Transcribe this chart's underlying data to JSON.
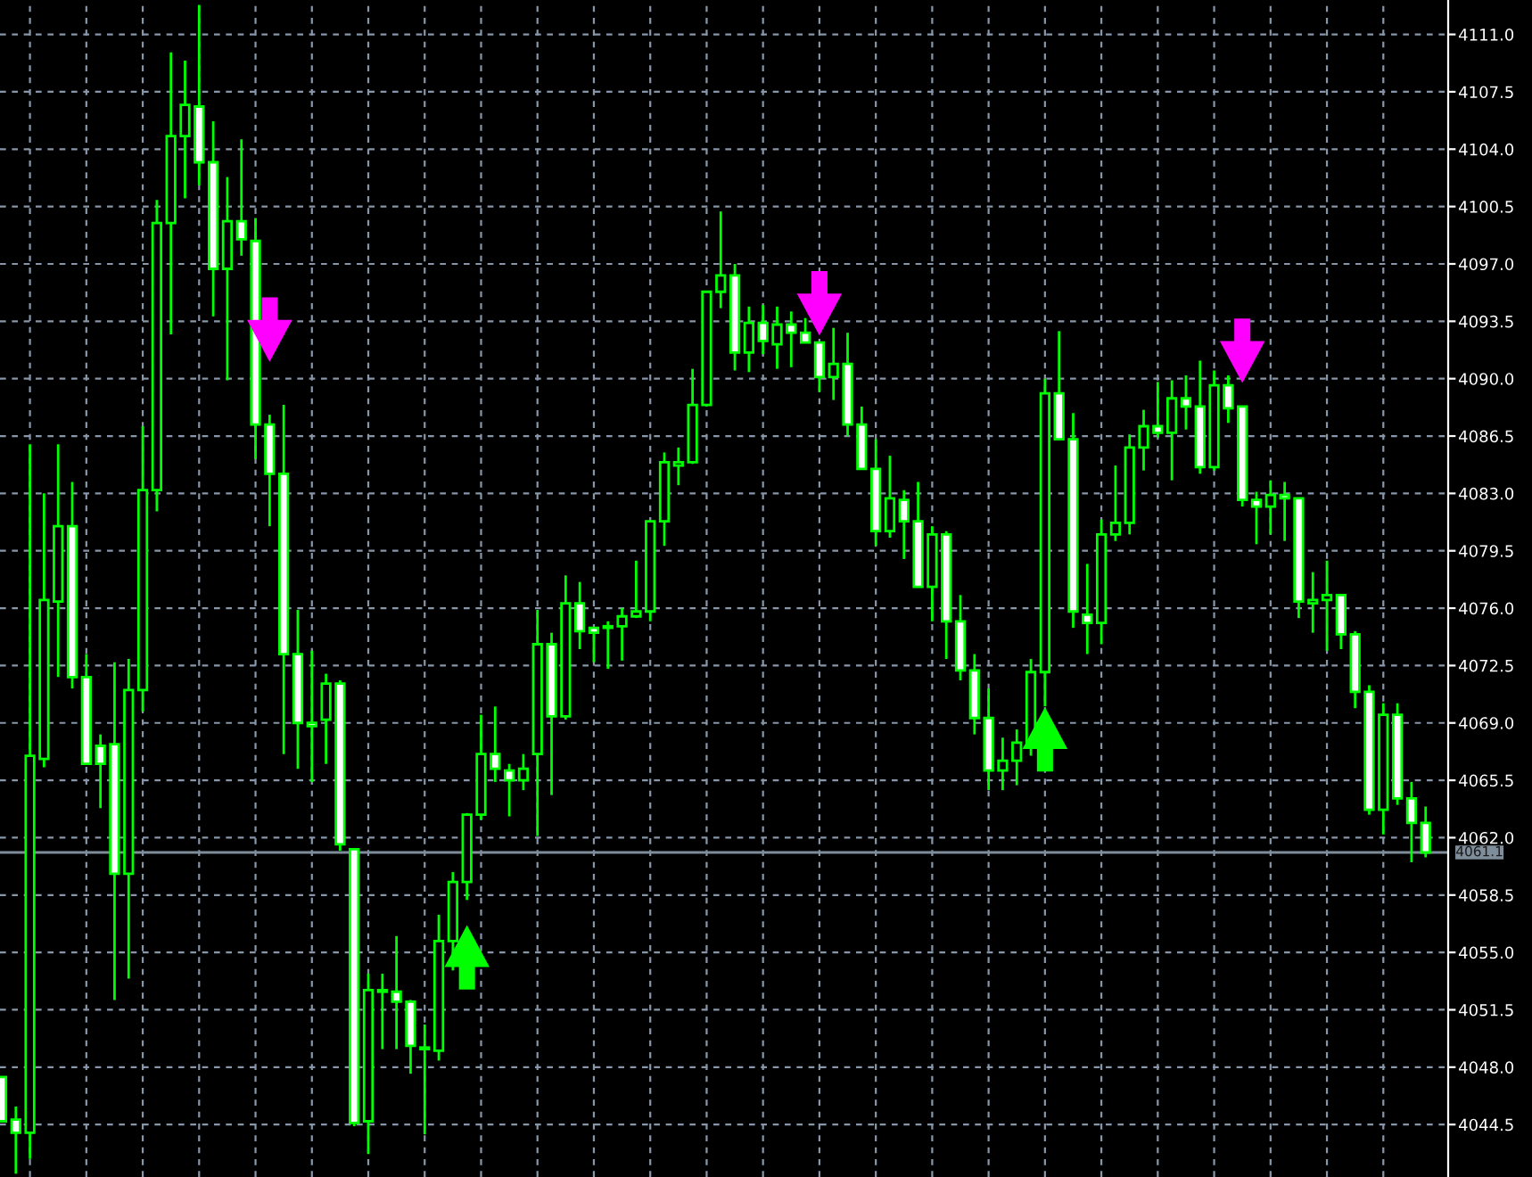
{
  "chart_data": {
    "type": "candlestick",
    "categories": [
      null,
      null,
      null,
      null,
      null,
      null,
      null,
      null,
      null,
      null,
      null,
      null,
      null,
      null,
      null,
      null,
      null,
      null,
      null,
      null,
      null,
      null,
      null,
      null,
      null,
      null,
      null,
      null,
      null,
      null,
      null,
      null,
      null,
      null,
      null,
      null,
      null,
      null,
      null,
      null,
      null,
      null,
      null,
      null,
      null,
      null,
      null,
      null,
      null,
      null,
      null,
      null,
      null,
      null,
      null,
      null,
      null,
      null,
      null,
      null,
      null,
      null,
      null,
      null,
      null,
      null,
      null,
      null,
      null,
      null,
      null,
      null,
      null,
      null,
      null,
      null,
      null,
      null,
      null,
      null,
      null,
      null,
      null,
      null,
      null,
      null,
      null,
      null,
      null,
      null,
      null,
      null,
      null,
      null,
      null,
      null,
      null,
      null,
      null,
      null,
      null,
      null
    ],
    "ohlc": [
      [
        4047.4,
        4047.4,
        4044.7,
        4044.7
      ],
      [
        4044.8,
        4045.6,
        4041.5,
        4044.0
      ],
      [
        4044.0,
        4086.0,
        4042.4,
        4067.0
      ],
      [
        4066.8,
        4083.0,
        4066.3,
        4076.5
      ],
      [
        4076.4,
        4086.0,
        4071.8,
        4081.0
      ],
      [
        4081.0,
        4083.7,
        4071.1,
        4071.8
      ],
      [
        4071.8,
        4073.2,
        4066.5,
        4066.5
      ],
      [
        4067.6,
        4068.3,
        4063.8,
        4066.5
      ],
      [
        4067.7,
        4072.7,
        4052.1,
        4059.8
      ],
      [
        4059.8,
        4072.9,
        4053.4,
        4071.0
      ],
      [
        4071.0,
        4087.1,
        4069.7,
        4083.2
      ],
      [
        4083.2,
        4100.9,
        4081.9,
        4099.5
      ],
      [
        4099.5,
        4109.9,
        4092.7,
        4104.8
      ],
      [
        4104.8,
        4109.4,
        4101.0,
        4106.7
      ],
      [
        4106.6,
        4112.8,
        4101.8,
        4103.2
      ],
      [
        4103.2,
        4105.7,
        4093.8,
        4096.7
      ],
      [
        4096.7,
        4102.3,
        4089.9,
        4099.6
      ],
      [
        4099.6,
        4104.6,
        4097.5,
        4098.5
      ],
      [
        4098.4,
        4099.8,
        4085.1,
        4087.2
      ],
      [
        4087.2,
        4087.8,
        4081.0,
        4084.2
      ],
      [
        4084.2,
        4088.4,
        4067.1,
        4073.2
      ],
      [
        4073.2,
        4075.9,
        4066.2,
        4069.0
      ],
      [
        4069.0,
        4073.4,
        4065.4,
        4068.8
      ],
      [
        4069.2,
        4072.0,
        4066.5,
        4071.4
      ],
      [
        4071.4,
        4071.6,
        4061.2,
        4061.6
      ],
      [
        4061.3,
        4061.3,
        4044.4,
        4044.6
      ],
      [
        4044.7,
        4053.7,
        4042.7,
        4052.7
      ],
      [
        4052.7,
        4053.7,
        4049.1,
        4052.6
      ],
      [
        4052.6,
        4056.0,
        4049.1,
        4052.0
      ],
      [
        4052.0,
        4052.1,
        4047.6,
        4049.3
      ],
      [
        4049.2,
        4050.6,
        4043.9,
        4049.1
      ],
      [
        4049.0,
        4057.3,
        4048.4,
        4055.7
      ],
      [
        4055.7,
        4059.9,
        4053.9,
        4059.3
      ],
      [
        4059.3,
        4063.5,
        4058.2,
        4063.4
      ],
      [
        4063.4,
        4069.5,
        4063.1,
        4067.1
      ],
      [
        4067.1,
        4070.0,
        4065.4,
        4066.2
      ],
      [
        4066.1,
        4066.5,
        4063.3,
        4065.5
      ],
      [
        4065.5,
        4067.1,
        4064.9,
        4066.2
      ],
      [
        4067.1,
        4075.9,
        4062.1,
        4073.8
      ],
      [
        4073.8,
        4074.5,
        4064.6,
        4069.4
      ],
      [
        4069.4,
        4078.0,
        4069.2,
        4076.3
      ],
      [
        4076.3,
        4077.6,
        4073.5,
        4074.6
      ],
      [
        4074.8,
        4074.8,
        4072.7,
        4074.5
      ],
      [
        4074.8,
        4075.2,
        4072.3,
        4074.9
      ],
      [
        4074.9,
        4076.0,
        4072.8,
        4075.5
      ],
      [
        4075.5,
        4078.9,
        4075.4,
        4075.8
      ],
      [
        4075.8,
        4081.3,
        4075.2,
        4081.3
      ],
      [
        4081.3,
        4085.5,
        4079.8,
        4084.9
      ],
      [
        4084.7,
        4085.8,
        4083.5,
        4084.9
      ],
      [
        4084.9,
        4090.6,
        4084.8,
        4088.4
      ],
      [
        4088.4,
        4095.3,
        4088.3,
        4095.3
      ],
      [
        4095.3,
        4100.2,
        4094.3,
        4096.3
      ],
      [
        4096.3,
        4097.0,
        4090.5,
        4091.6
      ],
      [
        4091.6,
        4094.4,
        4090.4,
        4093.4
      ],
      [
        4093.4,
        4094.5,
        4091.5,
        4092.3
      ],
      [
        4092.1,
        4094.4,
        4090.6,
        4093.3
      ],
      [
        4093.3,
        4094.1,
        4090.7,
        4092.8
      ],
      [
        4092.8,
        4093.7,
        4092.2,
        4092.2
      ],
      [
        4092.2,
        4092.2,
        4089.2,
        4090.1
      ],
      [
        4090.1,
        4093.1,
        4088.7,
        4090.9
      ],
      [
        4090.9,
        4092.8,
        4086.5,
        4087.2
      ],
      [
        4087.2,
        4088.3,
        4084.5,
        4084.5
      ],
      [
        4084.5,
        4086.3,
        4079.8,
        4080.7
      ],
      [
        4080.7,
        4085.3,
        4080.3,
        4082.7
      ],
      [
        4082.6,
        4083.2,
        4079.0,
        4081.3
      ],
      [
        4081.3,
        4083.7,
        4077.3,
        4077.3
      ],
      [
        4077.3,
        4081.0,
        4075.2,
        4080.5
      ],
      [
        4080.5,
        4080.7,
        4072.9,
        4075.2
      ],
      [
        4075.2,
        4076.8,
        4071.6,
        4072.2
      ],
      [
        4072.2,
        4073.2,
        4068.3,
        4069.3
      ],
      [
        4069.3,
        4071.1,
        4064.9,
        4066.1
      ],
      [
        4066.1,
        4068.1,
        4064.9,
        4066.7
      ],
      [
        4066.7,
        4068.6,
        4065.2,
        4067.8
      ],
      [
        4067.8,
        4072.9,
        4067.0,
        4072.1
      ],
      [
        4072.1,
        4090.0,
        4070.0,
        4089.1
      ],
      [
        4089.1,
        4092.9,
        4086.3,
        4086.3
      ],
      [
        4086.3,
        4087.9,
        4074.8,
        4075.8
      ],
      [
        4075.6,
        4078.7,
        4073.2,
        4075.1
      ],
      [
        4075.1,
        4081.4,
        4073.8,
        4080.5
      ],
      [
        4080.5,
        4084.7,
        4080.1,
        4081.2
      ],
      [
        4081.2,
        4086.6,
        4080.5,
        4085.8
      ],
      [
        4085.8,
        4088.1,
        4084.4,
        4087.1
      ],
      [
        4087.1,
        4089.8,
        4086.4,
        4086.7
      ],
      [
        4086.7,
        4089.9,
        4083.8,
        4088.8
      ],
      [
        4088.8,
        4090.2,
        4086.9,
        4088.3
      ],
      [
        4088.3,
        4091.1,
        4084.2,
        4084.6
      ],
      [
        4084.6,
        4090.5,
        4084.4,
        4089.6
      ],
      [
        4089.6,
        4090.2,
        4087.3,
        4088.2
      ],
      [
        4088.3,
        4088.3,
        4082.2,
        4082.6
      ],
      [
        4082.6,
        4083.1,
        4079.9,
        4082.2
      ],
      [
        4082.2,
        4083.8,
        4080.5,
        4082.9
      ],
      [
        4082.9,
        4083.7,
        4080.1,
        4082.7
      ],
      [
        4082.7,
        4082.7,
        4075.4,
        4076.4
      ],
      [
        4076.3,
        4078.2,
        4074.5,
        4076.5
      ],
      [
        4076.5,
        4078.9,
        4073.4,
        4076.8
      ],
      [
        4076.8,
        4076.8,
        4073.5,
        4074.4
      ],
      [
        4074.4,
        4074.6,
        4069.9,
        4070.9
      ],
      [
        4070.9,
        4071.3,
        4063.4,
        4063.7
      ],
      [
        4063.7,
        4070.2,
        4062.2,
        4069.5
      ],
      [
        4069.5,
        4070.2,
        4064.0,
        4064.4
      ],
      [
        4064.4,
        4065.4,
        4060.5,
        4062.9
      ],
      [
        4062.9,
        4063.9,
        4060.8,
        4061.1
      ]
    ],
    "color": "#00ff00",
    "series": [
      {
        "type": "scatter",
        "color": "#ff00ff",
        "values": [
          null,
          null,
          null,
          null,
          null,
          null,
          null,
          null,
          null,
          null,
          null,
          null,
          null,
          null,
          null,
          null,
          null,
          null,
          null,
          4093.0,
          null,
          null,
          null,
          null,
          null,
          null,
          null,
          null,
          null,
          null,
          null,
          null,
          null,
          null,
          null,
          null,
          null,
          null,
          null,
          null,
          null,
          null,
          null,
          null,
          null,
          null,
          null,
          null,
          null,
          null,
          null,
          null,
          null,
          null,
          null,
          null,
          null,
          null,
          4094.6,
          null,
          null,
          null,
          null,
          null,
          null,
          null,
          null,
          null,
          null,
          null,
          null,
          null,
          null,
          null,
          null,
          null,
          null,
          null,
          null,
          null,
          null,
          null,
          null,
          null,
          null,
          null,
          null,
          null,
          4091.7,
          null,
          null,
          null,
          null,
          null,
          null,
          null,
          null,
          null,
          null,
          null,
          null,
          null
        ]
      },
      {
        "type": "scatter",
        "color": "#00ff00",
        "values": [
          null,
          null,
          null,
          null,
          null,
          null,
          null,
          null,
          null,
          null,
          null,
          null,
          null,
          null,
          null,
          null,
          null,
          null,
          null,
          null,
          null,
          null,
          null,
          null,
          null,
          null,
          null,
          null,
          null,
          null,
          null,
          null,
          null,
          4054.7,
          null,
          null,
          null,
          null,
          null,
          null,
          null,
          null,
          null,
          null,
          null,
          null,
          null,
          null,
          null,
          null,
          null,
          null,
          null,
          null,
          null,
          null,
          null,
          null,
          null,
          null,
          null,
          null,
          null,
          null,
          null,
          null,
          null,
          null,
          null,
          null,
          null,
          null,
          null,
          null,
          4068.0,
          null,
          null,
          null,
          null,
          null,
          null,
          null,
          null,
          null,
          null,
          null,
          null,
          null,
          null,
          null,
          null,
          null,
          null,
          null,
          null,
          null,
          null,
          null,
          null,
          null,
          null,
          null
        ]
      }
    ],
    "ylim": [
      4041.3,
      4113.1
    ],
    "yticks": [
      4044.5,
      {
        "value": 4048,
        "label": "4048.0"
      },
      4051.5,
      {
        "value": 4055,
        "label": "4055.0"
      },
      4058.5,
      {
        "value": 4062,
        "label": "4062.0"
      },
      4065.5,
      {
        "value": 4069,
        "label": "4069.0"
      },
      4072.5,
      {
        "value": 4076,
        "label": "4076.0"
      },
      4079.5,
      {
        "value": 4083,
        "label": "4083.0"
      },
      4086.5,
      {
        "value": 4090,
        "label": "4090.0"
      },
      4093.5,
      {
        "value": 4097,
        "label": "4097.0"
      },
      4100.5,
      {
        "value": 4104,
        "label": "4104.0"
      },
      4107.5,
      {
        "value": 4111,
        "label": "4111.0"
      }
    ],
    "tick_labels": "y",
    "grid": true,
    "legend": false,
    "ref_lines": [
      {
        "axis": "y",
        "value": 4061.1,
        "label": "4061.1",
        "color": "#7f8c99"
      }
    ]
  }
}
